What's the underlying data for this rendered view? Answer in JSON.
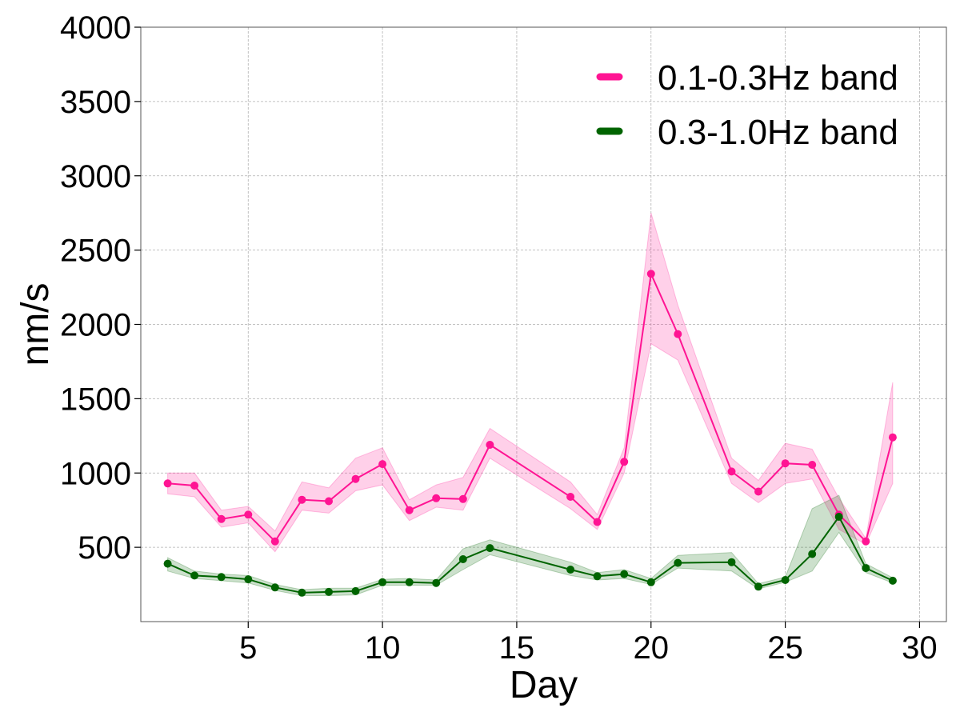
{
  "colors": {
    "series1": "#ff1493",
    "series2": "#006400",
    "grid": "#b0b0b0",
    "axis": "#000000"
  },
  "chart_data": {
    "type": "line",
    "xlabel": "Day",
    "ylabel": "nm/s",
    "xlim": [
      1,
      31
    ],
    "ylim": [
      0,
      4000
    ],
    "xticks": [
      5,
      10,
      15,
      20,
      25,
      30
    ],
    "xtick_labels": [
      "5",
      "10",
      "15",
      "20",
      "25",
      "30"
    ],
    "yticks": [
      500,
      1000,
      1500,
      2000,
      2500,
      3000,
      3500,
      4000
    ],
    "ytick_labels": [
      "500",
      "1000",
      "1500",
      "2000",
      "2500",
      "3000",
      "3500",
      "4000"
    ],
    "grid": true,
    "grid_style": "dashed",
    "legend_position": "top-right",
    "series": [
      {
        "name": "0.1-0.3Hz band",
        "color": "#ff1493",
        "x": [
          2,
          3,
          4,
          5,
          6,
          7,
          8,
          9,
          10,
          11,
          12,
          13,
          14,
          17,
          18,
          19,
          20,
          21,
          23,
          24,
          25,
          26,
          27,
          28,
          29
        ],
        "y": [
          930,
          915,
          690,
          720,
          540,
          820,
          810,
          960,
          1060,
          750,
          830,
          825,
          1190,
          840,
          670,
          1075,
          2340,
          1935,
          1010,
          875,
          1065,
          1055,
          720,
          540,
          1240
        ],
        "lower": [
          860,
          840,
          635,
          665,
          470,
          750,
          730,
          880,
          920,
          680,
          770,
          750,
          1100,
          760,
          620,
          1000,
          1870,
          1760,
          930,
          800,
          930,
          960,
          620,
          520,
          930
        ],
        "upper": [
          1000,
          1000,
          750,
          775,
          610,
          940,
          900,
          1100,
          1170,
          820,
          920,
          970,
          1300,
          940,
          720,
          1170,
          2750,
          2130,
          1100,
          950,
          1200,
          1160,
          830,
          560,
          1610
        ]
      },
      {
        "name": "0.3-1.0Hz band",
        "color": "#006400",
        "x": [
          2,
          3,
          4,
          5,
          6,
          7,
          8,
          9,
          10,
          11,
          12,
          13,
          14,
          17,
          18,
          19,
          20,
          21,
          23,
          24,
          25,
          26,
          27,
          28,
          29
        ],
        "y": [
          390,
          310,
          300,
          285,
          230,
          195,
          200,
          205,
          265,
          265,
          260,
          420,
          495,
          350,
          305,
          320,
          265,
          395,
          400,
          235,
          280,
          455,
          705,
          360,
          275
        ],
        "lower": [
          340,
          290,
          275,
          260,
          210,
          175,
          175,
          180,
          245,
          245,
          245,
          350,
          450,
          310,
          280,
          290,
          250,
          360,
          340,
          220,
          265,
          340,
          600,
          330,
          260
        ],
        "upper": [
          430,
          340,
          320,
          310,
          250,
          215,
          225,
          225,
          285,
          290,
          280,
          490,
          550,
          400,
          330,
          350,
          290,
          445,
          465,
          255,
          300,
          760,
          850,
          390,
          295
        ]
      }
    ]
  }
}
